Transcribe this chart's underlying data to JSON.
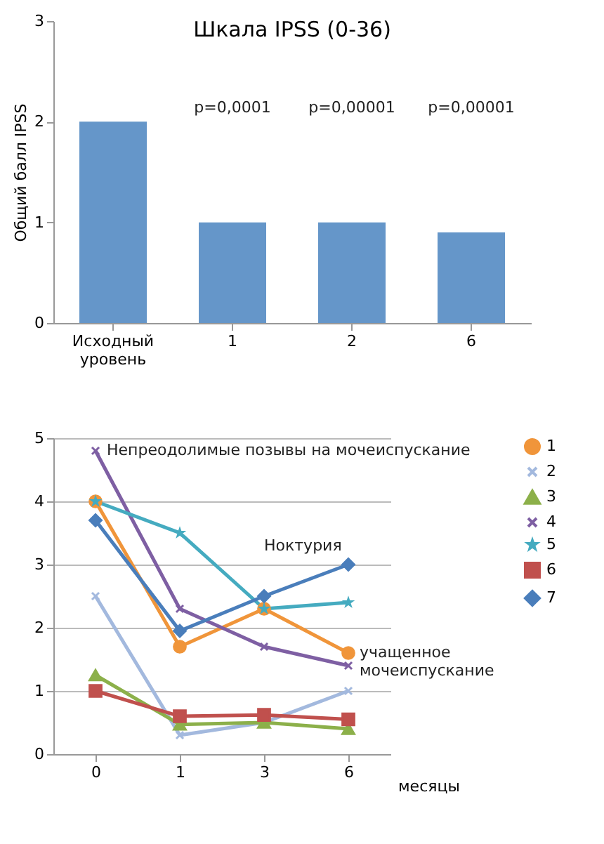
{
  "chart_data": [
    {
      "type": "bar",
      "title": "Шкала IPSS  (0-36)",
      "ylabel": "Общий балл IPSS",
      "categories": [
        "Исходный уровень",
        "1",
        "2",
        "6"
      ],
      "values": [
        2,
        1,
        1,
        0.9
      ],
      "color": "#6596c9",
      "ylim": [
        0,
        3
      ],
      "yticks": [
        0,
        1,
        2,
        3
      ],
      "annotations": [
        "p=0,0001",
        "p=0,00001",
        "p=0,00001"
      ]
    },
    {
      "type": "line",
      "xlabel": "месяцы",
      "categories": [
        "0",
        "1",
        "3",
        "6"
      ],
      "ylim": [
        0,
        5
      ],
      "yticks": [
        0,
        1,
        2,
        3,
        4,
        5
      ],
      "grid": "y",
      "legend": "right",
      "series": [
        {
          "name": "1",
          "color": "#f0953a",
          "marker": "circle",
          "values": [
            4.0,
            1.7,
            2.3,
            1.6
          ]
        },
        {
          "name": "2",
          "color": "#a3b9de",
          "marker": "cross",
          "values": [
            2.5,
            0.3,
            0.5,
            1.0
          ]
        },
        {
          "name": "3",
          "color": "#8cb04a",
          "marker": "triangle",
          "values": [
            1.25,
            0.47,
            0.5,
            0.4
          ]
        },
        {
          "name": "4",
          "color": "#7e5fa3",
          "marker": "cross",
          "values": [
            4.8,
            2.3,
            1.7,
            1.4
          ]
        },
        {
          "name": "5",
          "color": "#45abc0",
          "marker": "star",
          "values": [
            4.0,
            3.5,
            2.3,
            2.4
          ]
        },
        {
          "name": "6",
          "color": "#c0504d",
          "marker": "square",
          "values": [
            1.0,
            0.6,
            0.62,
            0.55
          ]
        },
        {
          "name": "7",
          "color": "#4a7ebb",
          "marker": "diamond",
          "values": [
            3.7,
            1.95,
            2.5,
            3.0
          ]
        }
      ],
      "annotations": [
        {
          "text": "Непреодолимые позывы на мочеиспускание",
          "x": "0",
          "y": 4.8
        },
        "Ноктурия",
        {
          "text": "учащенное\nмочеиспускание",
          "x": "6",
          "y": 1.6
        }
      ]
    }
  ]
}
